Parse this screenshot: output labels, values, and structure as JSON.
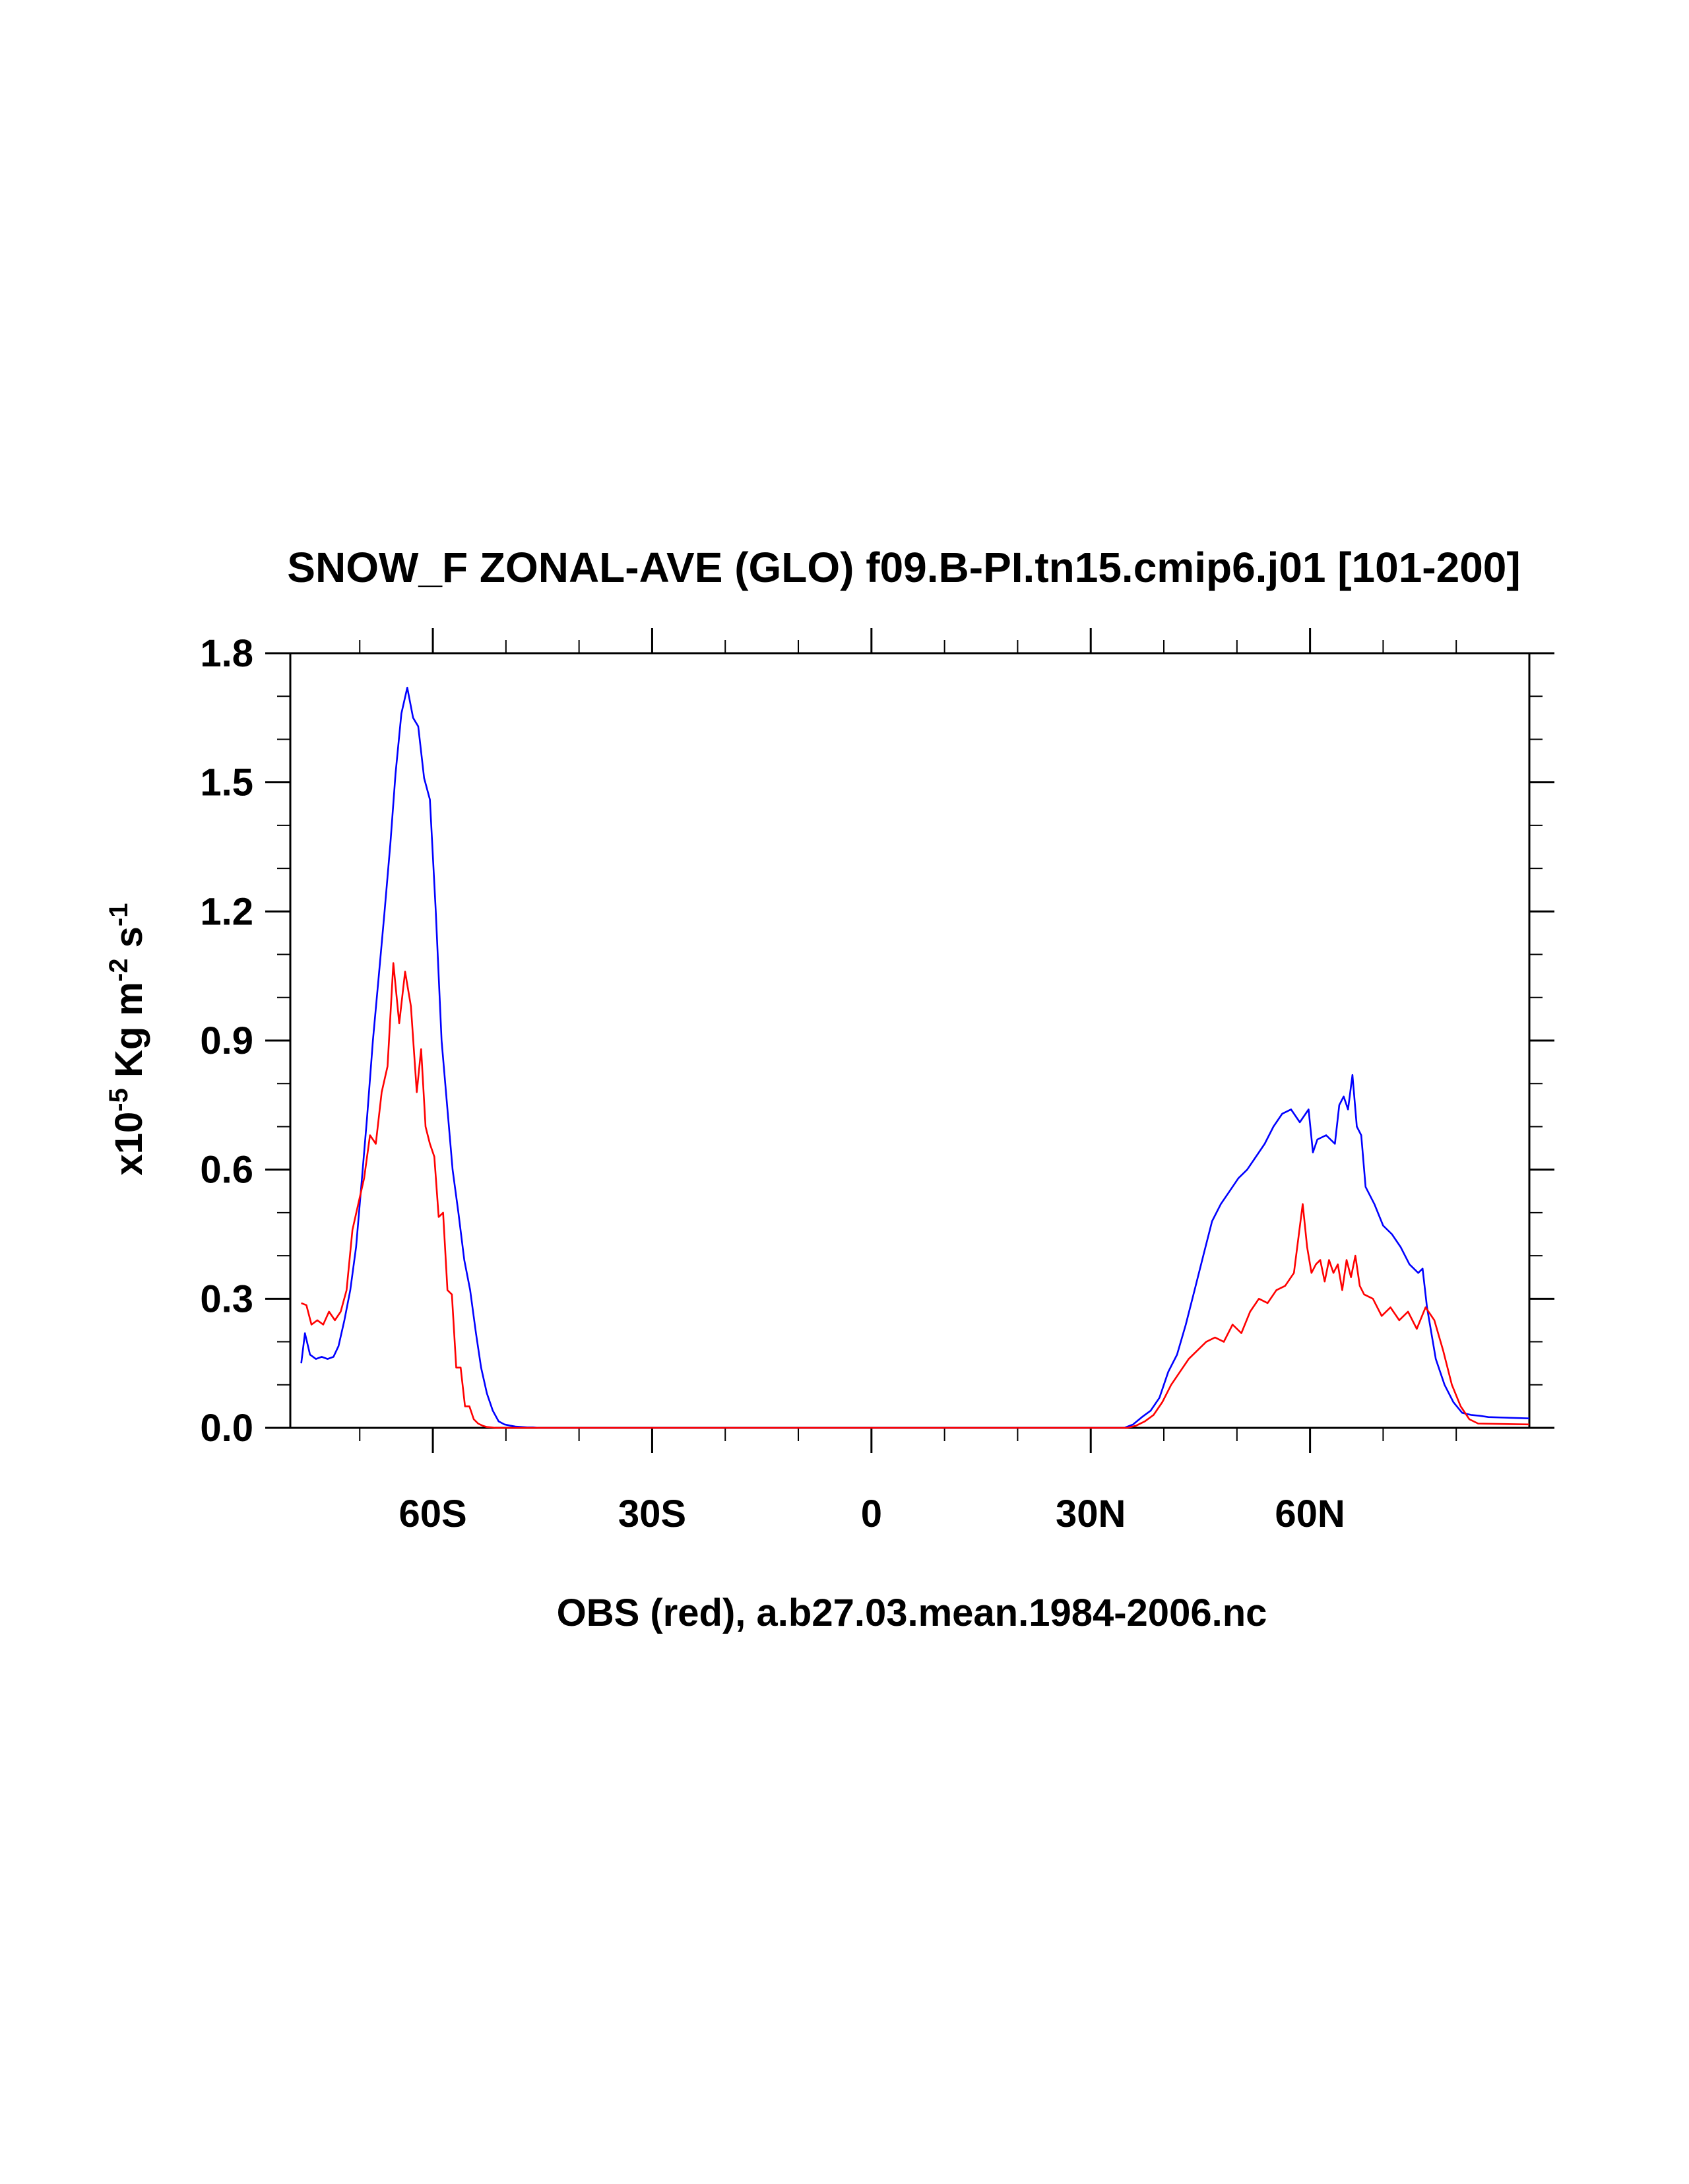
{
  "chart_data": {
    "type": "line",
    "title": "SNOW_F ZONAL-AVE (GLO) f09.B-PI.tn15.cmip6.j01 [101-200]",
    "xlabel": "OBS (red), a.b27.03.mean.1984-2006.nc",
    "ylabel": {
      "prefix": "x10",
      "exp1": "-5",
      "mid": " Kg m",
      "exp2": "-2",
      "mid2": " s",
      "exp3": "-1"
    },
    "xlim": [
      -79.5,
      90
    ],
    "ylim": [
      0,
      1.8
    ],
    "x_ticks": [
      {
        "value": -60,
        "label": "60S"
      },
      {
        "value": -30,
        "label": "30S"
      },
      {
        "value": 0,
        "label": "0"
      },
      {
        "value": 30,
        "label": "30N"
      },
      {
        "value": 60,
        "label": "60N"
      }
    ],
    "x_minor_ticks": [
      -70,
      -50,
      -40,
      -20,
      -10,
      10,
      20,
      40,
      50,
      70,
      80
    ],
    "y_ticks": [
      {
        "value": 0,
        "label": "0.0"
      },
      {
        "value": 0.3,
        "label": "0.3"
      },
      {
        "value": 0.6,
        "label": "0.6"
      },
      {
        "value": 0.9,
        "label": "0.9"
      },
      {
        "value": 1.2,
        "label": "1.2"
      },
      {
        "value": 1.5,
        "label": "1.5"
      },
      {
        "value": 1.8,
        "label": "1.8"
      }
    ],
    "y_minor_ticks": [
      0.1,
      0.2,
      0.4,
      0.5,
      0.7,
      0.8,
      1.0,
      1.1,
      1.3,
      1.4,
      1.6,
      1.7
    ],
    "grid": false,
    "series": [
      {
        "color": "#0000ff",
        "x": [
          -78.0,
          -77.5,
          -76.8,
          -76.0,
          -75.2,
          -74.4,
          -73.6,
          -72.9,
          -72.1,
          -71.3,
          -70.5,
          -69.8,
          -69.0,
          -68.2,
          -67.4,
          -66.6,
          -65.8,
          -65.1,
          -64.3,
          -63.5,
          -62.7,
          -62.0,
          -61.2,
          -60.4,
          -59.6,
          -58.8,
          -58.0,
          -57.3,
          -56.5,
          -55.7,
          -54.9,
          -54.1,
          -53.4,
          -52.6,
          -51.8,
          -51.0,
          -50.2,
          -49.4,
          -48.7,
          -47.9,
          -47.1,
          -46.3,
          -45.5,
          -44.8,
          -44.0,
          -43.2,
          -42.4,
          -41.6,
          34.6,
          35.8,
          37.0,
          38.2,
          39.4,
          40.6,
          41.8,
          43.0,
          44.2,
          45.4,
          46.6,
          47.8,
          49.0,
          50.2,
          51.4,
          52.6,
          53.8,
          55.0,
          56.2,
          57.4,
          58.6,
          59.8,
          60.4,
          61.0,
          62.2,
          63.4,
          64.0,
          64.6,
          65.2,
          65.8,
          66.4,
          67.0,
          67.6,
          68.8,
          70.0,
          71.2,
          72.4,
          73.6,
          74.8,
          75.4,
          76.0,
          77.2,
          78.4,
          79.6,
          80.8,
          82.0,
          83.2,
          84.4,
          90.0
        ],
        "y": [
          0.15,
          0.22,
          0.17,
          0.16,
          0.165,
          0.16,
          0.165,
          0.19,
          0.25,
          0.32,
          0.42,
          0.56,
          0.72,
          0.9,
          1.05,
          1.2,
          1.36,
          1.52,
          1.66,
          1.72,
          1.65,
          1.63,
          1.51,
          1.46,
          1.2,
          0.9,
          0.74,
          0.6,
          0.5,
          0.39,
          0.32,
          0.22,
          0.14,
          0.08,
          0.04,
          0.015,
          0.008,
          0.005,
          0.003,
          0.002,
          0.001,
          0.001,
          0.0,
          0.0,
          0.0,
          0.0,
          0.0,
          0.0,
          0.0,
          0.008,
          0.025,
          0.04,
          0.07,
          0.13,
          0.17,
          0.24,
          0.32,
          0.4,
          0.48,
          0.52,
          0.55,
          0.58,
          0.6,
          0.63,
          0.66,
          0.7,
          0.73,
          0.74,
          0.71,
          0.74,
          0.64,
          0.67,
          0.68,
          0.66,
          0.75,
          0.77,
          0.74,
          0.82,
          0.7,
          0.68,
          0.56,
          0.52,
          0.47,
          0.45,
          0.42,
          0.38,
          0.36,
          0.37,
          0.28,
          0.16,
          0.1,
          0.06,
          0.035,
          0.03,
          0.028,
          0.025,
          0.022
        ]
      },
      {
        "color": "#ff0000",
        "x": [
          -78.0,
          -77.3,
          -76.6,
          -75.8,
          -75.0,
          -74.2,
          -73.4,
          -72.6,
          -71.8,
          -71.0,
          -70.2,
          -69.4,
          -68.6,
          -67.8,
          -67.0,
          -66.2,
          -65.4,
          -64.6,
          -63.8,
          -63.0,
          -62.2,
          -61.6,
          -61.0,
          -60.4,
          -59.8,
          -59.2,
          -58.6,
          -58.0,
          -57.4,
          -56.8,
          -56.2,
          -55.6,
          -55.0,
          -54.4,
          -53.8,
          -53.2,
          -52.6,
          -52.0,
          -51.4,
          -50.8,
          -50.2,
          -49.6,
          -49.0,
          -48.4,
          -47.8,
          -47.2,
          -46.6,
          35.0,
          36.2,
          37.4,
          38.6,
          39.8,
          41.0,
          42.2,
          43.4,
          44.6,
          45.8,
          47.0,
          48.2,
          49.4,
          50.6,
          51.8,
          53.0,
          54.2,
          55.4,
          56.6,
          57.8,
          59.0,
          59.6,
          60.2,
          60.8,
          61.4,
          62.0,
          62.6,
          63.2,
          63.8,
          64.4,
          65.0,
          65.6,
          66.2,
          66.8,
          67.4,
          68.6,
          69.8,
          71.0,
          72.2,
          73.4,
          74.6,
          75.8,
          77.0,
          78.2,
          79.4,
          80.6,
          81.8,
          83.0,
          90.0
        ],
        "y": [
          0.29,
          0.285,
          0.24,
          0.25,
          0.24,
          0.27,
          0.25,
          0.27,
          0.32,
          0.46,
          0.52,
          0.58,
          0.68,
          0.66,
          0.78,
          0.84,
          1.08,
          0.94,
          1.06,
          0.98,
          0.78,
          0.88,
          0.7,
          0.66,
          0.63,
          0.49,
          0.5,
          0.32,
          0.31,
          0.14,
          0.14,
          0.05,
          0.05,
          0.02,
          0.01,
          0.005,
          0.002,
          0.001,
          0.0,
          0.0,
          0.0,
          0.0,
          0.0,
          0.0,
          0.0,
          0.0,
          0.0,
          0.0,
          0.005,
          0.015,
          0.03,
          0.06,
          0.1,
          0.13,
          0.16,
          0.18,
          0.2,
          0.21,
          0.2,
          0.24,
          0.22,
          0.27,
          0.3,
          0.29,
          0.32,
          0.33,
          0.36,
          0.52,
          0.42,
          0.36,
          0.38,
          0.39,
          0.34,
          0.39,
          0.36,
          0.38,
          0.32,
          0.39,
          0.35,
          0.4,
          0.33,
          0.31,
          0.3,
          0.26,
          0.28,
          0.25,
          0.27,
          0.23,
          0.28,
          0.25,
          0.18,
          0.1,
          0.05,
          0.02,
          0.01,
          0.008
        ]
      }
    ]
  }
}
